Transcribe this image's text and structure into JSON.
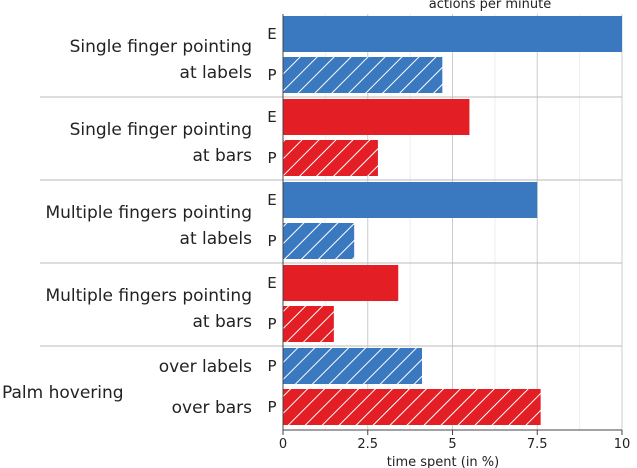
{
  "chart_data": {
    "type": "bar",
    "orientation": "horizontal",
    "top_axis_title": "actions per minute",
    "xlabel": "time spent (in %)",
    "xlim": [
      0,
      10
    ],
    "xticks": [
      0,
      2.5,
      5,
      7.5,
      10
    ],
    "xtick_labels": [
      "0",
      "2.5",
      "5",
      "7.5",
      "10"
    ],
    "grid": true,
    "colors": {
      "labels": "#3a78c0",
      "bars": "#e31e24",
      "grid": "#cccccc",
      "separator": "#bbbbbb"
    },
    "groups": [
      {
        "label_lines": [
          "Single finger pointing",
          "at labels"
        ],
        "rows": [
          {
            "tag": "E",
            "value": 10.0,
            "color": "labels",
            "hatched": false
          },
          {
            "tag": "P",
            "value": 4.7,
            "color": "labels",
            "hatched": true
          }
        ]
      },
      {
        "label_lines": [
          "Single finger pointing",
          "at bars"
        ],
        "rows": [
          {
            "tag": "E",
            "value": 5.5,
            "color": "bars",
            "hatched": false
          },
          {
            "tag": "P",
            "value": 2.8,
            "color": "bars",
            "hatched": true
          }
        ]
      },
      {
        "label_lines": [
          "Multiple fingers pointing",
          "at labels"
        ],
        "rows": [
          {
            "tag": "E",
            "value": 7.5,
            "color": "labels",
            "hatched": false
          },
          {
            "tag": "P",
            "value": 2.1,
            "color": "labels",
            "hatched": true
          }
        ]
      },
      {
        "label_lines": [
          "Multiple fingers pointing",
          "at bars"
        ],
        "rows": [
          {
            "tag": "E",
            "value": 3.4,
            "color": "bars",
            "hatched": false
          },
          {
            "tag": "P",
            "value": 1.5,
            "color": "bars",
            "hatched": true
          }
        ]
      },
      {
        "label_lines": [
          "Palm hovering"
        ],
        "rows": [
          {
            "tag": "P",
            "sublabel": "over labels",
            "value": 4.1,
            "color": "labels",
            "hatched": true
          },
          {
            "tag": "P",
            "sublabel": "over bars",
            "value": 7.6,
            "color": "bars",
            "hatched": true
          }
        ]
      }
    ]
  }
}
